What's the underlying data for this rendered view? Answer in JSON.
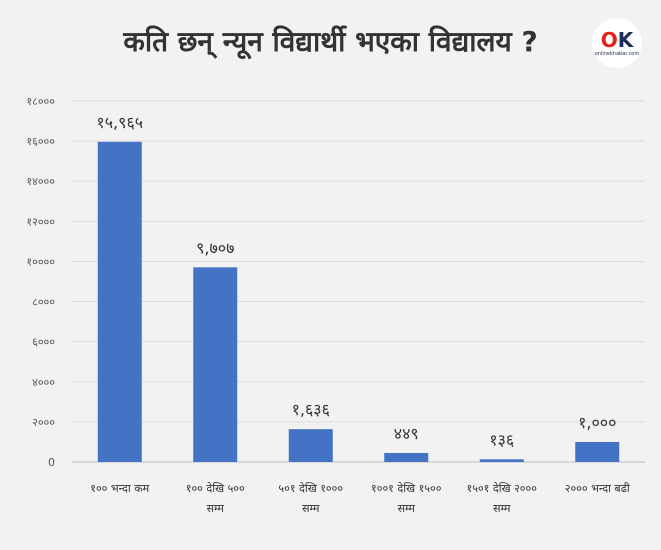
{
  "header": {
    "title": "कति छन् न्यून विद्यार्थी भएका विद्यालय ?",
    "logo_text": "OK",
    "logo_sub": "onlinekhabar.com"
  },
  "chart_data": {
    "type": "bar",
    "categories": [
      [
        "१०० भन्दा कम"
      ],
      [
        "१०० देखि ५००",
        "सम्म"
      ],
      [
        "५०१ देखि १०००",
        "सम्म"
      ],
      [
        "१००१ देखि १५००",
        "सम्म"
      ],
      [
        "१५०१ देखि २०००",
        "सम्म"
      ],
      [
        "२००० भन्दा बढी"
      ]
    ],
    "values": [
      15965,
      9707,
      1636,
      449,
      136,
      1000
    ],
    "data_labels": [
      "१५,९६५",
      "९,७०७",
      "१,६३६",
      "४४९",
      "१३६",
      "१,०००"
    ],
    "yticks": [
      0,
      2000,
      4000,
      6000,
      8000,
      10000,
      12000,
      14000,
      16000,
      18000
    ],
    "ytick_labels": [
      "0",
      "२०००",
      "४०००",
      "६०००",
      "८०००",
      "१००००",
      "१२०००",
      "१४०००",
      "१६०००",
      "१८०००"
    ],
    "ylim": [
      0,
      18000
    ],
    "grid": true,
    "bar_color": "#4472c4",
    "grid_color": "#dcdcdc",
    "title": "",
    "xlabel": "",
    "ylabel": ""
  }
}
